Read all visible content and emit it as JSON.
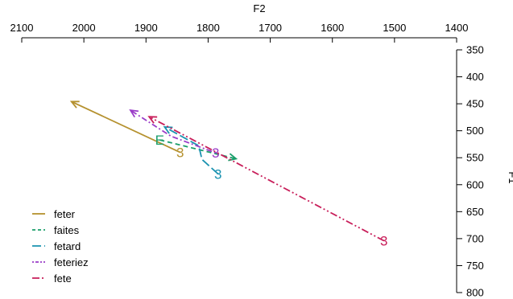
{
  "chart_data": {
    "type": "line",
    "title": "",
    "xlabel": "F2",
    "ylabel": "F1",
    "xlim": [
      2100,
      1400
    ],
    "ylim": [
      350,
      800
    ],
    "x_ticks": [
      2100,
      2000,
      1900,
      1800,
      1700,
      1600,
      1500,
      1400
    ],
    "y_ticks": [
      350,
      400,
      450,
      500,
      550,
      600,
      650,
      700,
      750,
      800
    ],
    "x_axis_position": "top",
    "y_axis_position": "right",
    "x_reversed": true,
    "y_reversed": true,
    "grid": false,
    "legend_position": "bottom-left",
    "series": [
      {
        "name": "feter",
        "color": "#B5912E",
        "dash": "solid",
        "points": [
          {
            "x": 1845,
            "y": 540,
            "label": "3"
          },
          {
            "x": 2020,
            "y": 446
          }
        ],
        "arrow_at": "end"
      },
      {
        "name": "faites",
        "color": "#1A9E6A",
        "dash": "dashed",
        "points": [
          {
            "x": 1878,
            "y": 517,
            "label": "E"
          },
          {
            "x": 1755,
            "y": 552
          }
        ],
        "arrow_at": "end"
      },
      {
        "name": "fetard",
        "color": "#1A92B0",
        "dash": "longdash",
        "points": [
          {
            "x": 1784,
            "y": 580,
            "label": "3"
          },
          {
            "x": 1810,
            "y": 553
          },
          {
            "x": 1815,
            "y": 528
          },
          {
            "x": 1870,
            "y": 493
          }
        ],
        "arrow_at": "end"
      },
      {
        "name": "feteriez",
        "color": "#9A3CC8",
        "dash": "dashdot",
        "points": [
          {
            "x": 1788,
            "y": 541,
            "label": "3"
          },
          {
            "x": 1860,
            "y": 510
          },
          {
            "x": 1925,
            "y": 462
          }
        ],
        "arrow_at": "end"
      },
      {
        "name": "fete",
        "color": "#C81E5A",
        "dash": "dashdotdot",
        "points": [
          {
            "x": 1517,
            "y": 704,
            "label": "3"
          },
          {
            "x": 1895,
            "y": 474
          }
        ],
        "arrow_at": "end"
      }
    ]
  }
}
